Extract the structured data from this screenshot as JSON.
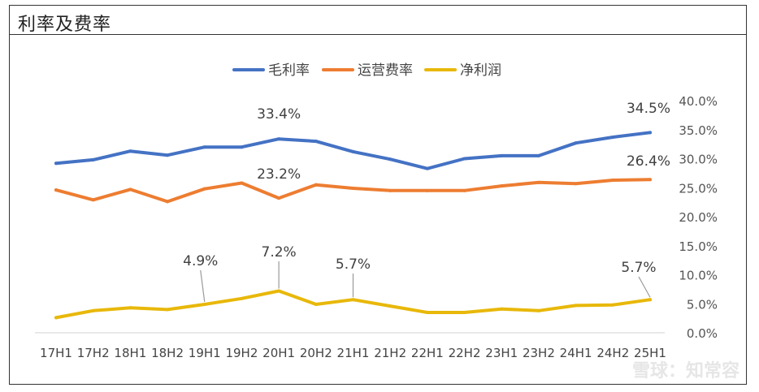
{
  "panel_title": "利率及费率",
  "watermark": "雪球：知常容",
  "chart_data": {
    "type": "line",
    "title": "",
    "xlabel": "",
    "ylabel": "",
    "categories": [
      "17H1",
      "17H2",
      "18H1",
      "18H2",
      "19H1",
      "19H2",
      "20H1",
      "20H2",
      "21H1",
      "21H2",
      "22H1",
      "22H2",
      "23H1",
      "23H2",
      "24H1",
      "24H2",
      "25H1"
    ],
    "ylim": [
      0,
      40
    ],
    "yticks": [
      "0.0%",
      "5.0%",
      "10.0%",
      "15.0%",
      "20.0%",
      "25.0%",
      "30.0%",
      "35.0%",
      "40.0%"
    ],
    "ytick_values": [
      0,
      5,
      10,
      15,
      20,
      25,
      30,
      35,
      40
    ],
    "legend_position": "top-center",
    "series": [
      {
        "name": "毛利率",
        "color": "#4472C4",
        "values": [
          29.2,
          29.8,
          31.3,
          30.6,
          32.0,
          32.0,
          33.4,
          33.0,
          31.2,
          29.9,
          28.3,
          30.0,
          30.5,
          30.5,
          32.7,
          33.7,
          34.5
        ]
      },
      {
        "name": "运营费率",
        "color": "#ED7D31",
        "values": [
          24.6,
          22.9,
          24.7,
          22.6,
          24.8,
          25.8,
          23.2,
          25.5,
          24.9,
          24.5,
          24.5,
          24.5,
          25.3,
          25.9,
          25.7,
          26.3,
          26.4
        ]
      },
      {
        "name": "净利润",
        "color": "#E8B80A",
        "values": [
          2.6,
          3.8,
          4.3,
          4.0,
          4.9,
          5.9,
          7.2,
          4.9,
          5.7,
          4.6,
          3.5,
          3.5,
          4.1,
          3.8,
          4.7,
          4.8,
          5.7
        ]
      }
    ],
    "annotations": [
      {
        "series": 0,
        "index": 6,
        "text": "33.4%"
      },
      {
        "series": 0,
        "index": 16,
        "text": "34.5%"
      },
      {
        "series": 1,
        "index": 6,
        "text": "23.2%"
      },
      {
        "series": 1,
        "index": 16,
        "text": "26.4%"
      },
      {
        "series": 2,
        "index": 4,
        "text": "4.9%"
      },
      {
        "series": 2,
        "index": 6,
        "text": "7.2%"
      },
      {
        "series": 2,
        "index": 8,
        "text": "5.7%"
      },
      {
        "series": 2,
        "index": 16,
        "text": "5.7%"
      }
    ]
  }
}
